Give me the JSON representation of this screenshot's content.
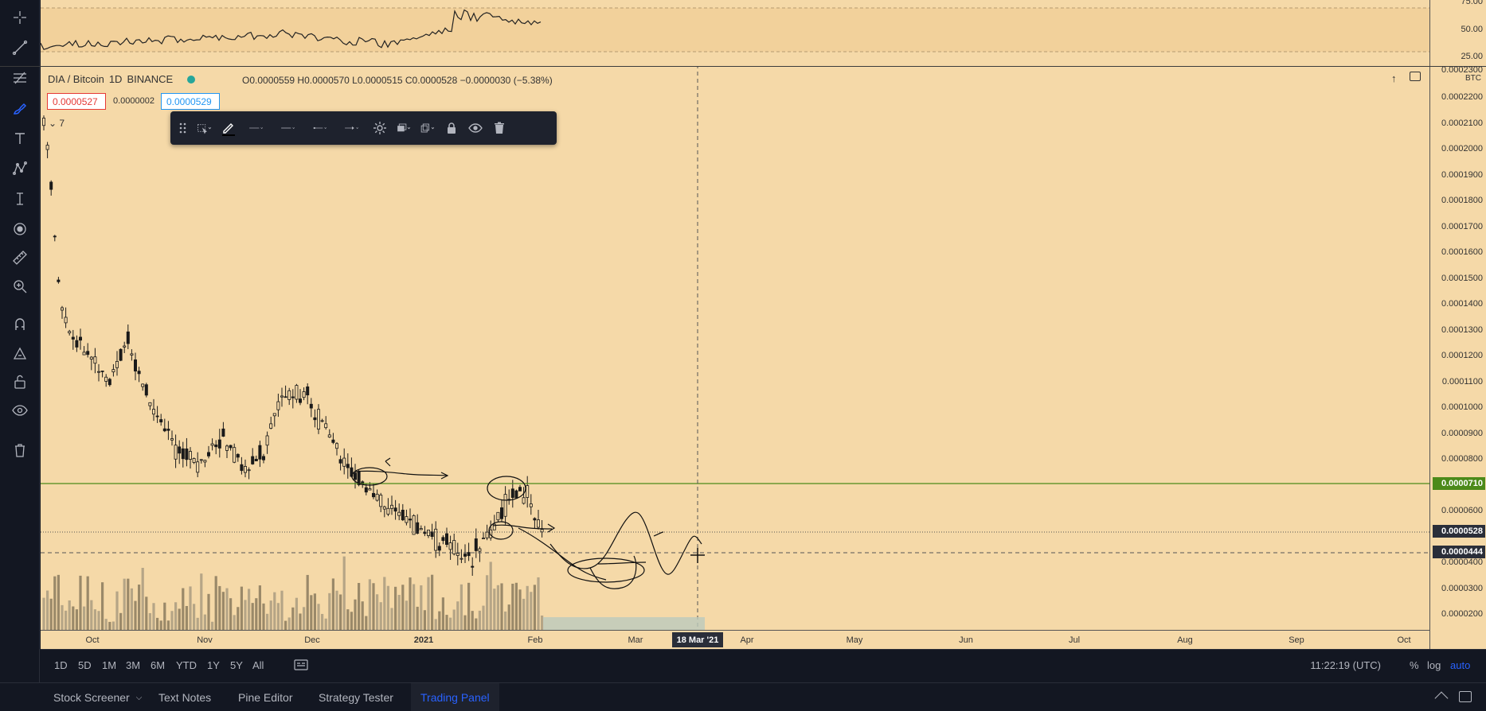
{
  "symbol": {
    "name": "DIA / Bitcoin",
    "interval": "1D",
    "exchange": "BINANCE",
    "open": "O0.0000559",
    "high": "H0.0000570",
    "low": "L0.0000515",
    "close": "C0.0000528",
    "change": "−0.0000030 (−5.38%)",
    "sell_price": "0.0000527",
    "spread": "0.0000002",
    "buy_price": "0.0000529",
    "indicator_count": "7",
    "currency": "BTC"
  },
  "colors": {
    "background": "#f5d9a8",
    "candle": "#1a1a1a",
    "volume": "#8a7a5e",
    "hline": "#4c8a1a",
    "sell": "#e53935",
    "buy": "#2196f3",
    "active_tab": "#2962ff"
  },
  "oscillator_axis": [
    "75.00",
    "50.00",
    "25.00"
  ],
  "price_axis": [
    "0.0002300",
    "0.0002200",
    "0.0002100",
    "0.0002000",
    "0.0001900",
    "0.0001800",
    "0.0001700",
    "0.0001600",
    "0.0001500",
    "0.0001400",
    "0.0001300",
    "0.0001200",
    "0.0001100",
    "0.0001000",
    "0.0000900",
    "0.0000800",
    "0.0000600",
    "0.0000400",
    "0.0000300",
    "0.0000200"
  ],
  "price_badges": {
    "hline": "0.0000710",
    "last": "0.0000528",
    "cursor": "0.0000444"
  },
  "time_axis": [
    "Oct",
    "Nov",
    "Dec",
    "2021",
    "Feb",
    "Mar",
    "Apr",
    "May",
    "Jun",
    "Jul",
    "Aug",
    "Sep",
    "Oct"
  ],
  "crosshair_date": "18 Mar '21",
  "ranges": [
    "1D",
    "5D",
    "1M",
    "3M",
    "6M",
    "YTD",
    "1Y",
    "5Y",
    "All"
  ],
  "time_readout": "11:22:19 (UTC)",
  "scale": {
    "percent": "%",
    "log": "log",
    "auto": "auto"
  },
  "panel_tabs": [
    "Stock Screener",
    "Text Notes",
    "Pine Editor",
    "Strategy Tester",
    "Trading Panel"
  ],
  "left_tools": [
    "crosshair-icon",
    "trend-line-icon",
    "fib-icon",
    "brush-icon",
    "text-icon",
    "pattern-icon",
    "measure-line-icon",
    "emoji-icon",
    "ruler-icon",
    "zoom-icon",
    "magnet-icon",
    "lock-drawing-icon",
    "unlock-icon",
    "eye-icon",
    "trash-icon"
  ],
  "drawing_toolbar_tools": [
    "drag-handle-icon",
    "select-template-icon",
    "pen-color-icon",
    "line-width-icon",
    "line-style-icon",
    "line-start-icon",
    "line-end-icon",
    "settings-icon",
    "layers-icon",
    "clone-icon",
    "lock-icon",
    "visibility-icon",
    "delete-icon"
  ]
}
